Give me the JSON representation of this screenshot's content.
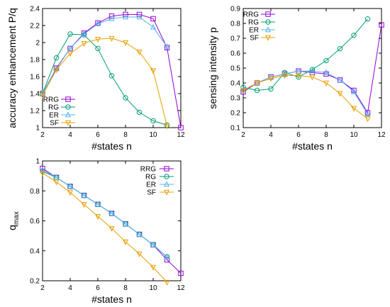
{
  "chart_data": [
    {
      "type": "line",
      "xlabel": "#states n",
      "ylabel": "accuracy enhancement P/q",
      "xlim": [
        2,
        12
      ],
      "ylim": [
        1,
        2.4
      ],
      "xticks": [
        "2",
        "4",
        "6",
        "8",
        "10",
        "12"
      ],
      "yticks": [
        "1",
        "1.2",
        "1.4",
        "1.6",
        "1.8",
        "2",
        "2.2",
        "2.4"
      ],
      "legend": "bottom-left",
      "series": [
        {
          "name": "RRG",
          "x": [
            2,
            3,
            4,
            5,
            6,
            7,
            8,
            9,
            10,
            11,
            12
          ],
          "values": [
            1.4,
            1.7,
            1.93,
            2.11,
            2.23,
            2.31,
            2.33,
            2.33,
            2.28,
            1.94,
            1.0
          ]
        },
        {
          "name": "RG",
          "x": [
            2,
            3,
            4,
            5,
            6,
            7,
            8,
            9,
            10,
            11
          ],
          "values": [
            1.4,
            1.82,
            2.1,
            2.09,
            1.93,
            1.61,
            1.35,
            1.18,
            1.08,
            1.03
          ]
        },
        {
          "name": "ER",
          "x": [
            2,
            3,
            4,
            5,
            6,
            7,
            8,
            9,
            10,
            11
          ],
          "values": [
            1.4,
            1.69,
            1.93,
            2.1,
            2.22,
            2.28,
            2.3,
            2.3,
            2.18,
            1.95
          ]
        },
        {
          "name": "SF",
          "x": [
            2,
            3,
            4,
            5,
            6,
            7,
            8,
            9,
            10,
            11
          ],
          "values": [
            1.38,
            1.68,
            1.87,
            1.99,
            2.04,
            2.05,
            2.0,
            1.89,
            1.67,
            1.02
          ]
        }
      ]
    },
    {
      "type": "line",
      "xlabel": "#states n",
      "ylabel": "sensing intensity p",
      "xlim": [
        2,
        12
      ],
      "ylim": [
        0.1,
        0.9
      ],
      "xticks": [
        "2",
        "4",
        "6",
        "8",
        "10",
        "12"
      ],
      "yticks": [
        "0.1",
        "0.2",
        "0.3",
        "0.4",
        "0.5",
        "0.6",
        "0.7",
        "0.8",
        "0.9"
      ],
      "legend": "top-left",
      "series": [
        {
          "name": "RRG",
          "x": [
            2,
            3,
            4,
            5,
            6,
            7,
            8,
            9,
            10,
            11,
            12
          ],
          "values": [
            0.34,
            0.4,
            0.44,
            0.46,
            0.48,
            0.47,
            0.46,
            0.42,
            0.35,
            0.2,
            0.79
          ]
        },
        {
          "name": "RG",
          "x": [
            2,
            3,
            4,
            5,
            6,
            7,
            8,
            9,
            10,
            11
          ],
          "values": [
            0.37,
            0.35,
            0.36,
            0.47,
            0.44,
            0.49,
            0.55,
            0.63,
            0.72,
            0.83
          ]
        },
        {
          "name": "ER",
          "x": [
            2,
            3,
            4,
            5,
            6,
            7,
            8,
            9,
            10,
            11
          ],
          "values": [
            0.35,
            0.4,
            0.44,
            0.46,
            0.48,
            0.48,
            0.47,
            0.42,
            0.34,
            0.19
          ]
        },
        {
          "name": "SF",
          "x": [
            2,
            3,
            4,
            5,
            6,
            7,
            8,
            9,
            10,
            11
          ],
          "values": [
            0.35,
            0.4,
            0.43,
            0.45,
            0.45,
            0.44,
            0.4,
            0.33,
            0.23,
            0.16
          ]
        }
      ]
    },
    {
      "type": "line",
      "xlabel": "#states n",
      "ylabel": "q",
      "ylabel_sub": "max",
      "xlim": [
        2,
        12
      ],
      "ylim": [
        0.2,
        1
      ],
      "xticks": [
        "2",
        "4",
        "6",
        "8",
        "10",
        "12"
      ],
      "yticks": [
        "0.2",
        "0.4",
        "0.6",
        "0.8",
        "1"
      ],
      "legend": "top-right",
      "series": [
        {
          "name": "RRG",
          "x": [
            2,
            3,
            4,
            5,
            6,
            7,
            8,
            9,
            10,
            11,
            12
          ],
          "values": [
            0.95,
            0.89,
            0.83,
            0.77,
            0.71,
            0.65,
            0.58,
            0.51,
            0.44,
            0.34,
            0.25
          ]
        },
        {
          "name": "RG",
          "x": [
            2,
            3,
            4,
            5,
            6,
            7,
            8,
            9,
            10,
            11
          ],
          "values": [
            0.93,
            0.89,
            0.83,
            0.77,
            0.71,
            0.65,
            0.58,
            0.51,
            0.44,
            0.36
          ]
        },
        {
          "name": "ER",
          "x": [
            2,
            3,
            4,
            5,
            6,
            7,
            8,
            9,
            10,
            11
          ],
          "values": [
            0.94,
            0.89,
            0.83,
            0.77,
            0.71,
            0.65,
            0.58,
            0.51,
            0.44,
            0.36
          ]
        },
        {
          "name": "SF",
          "x": [
            2,
            3,
            4,
            5,
            6,
            7,
            8,
            9,
            10,
            11
          ],
          "values": [
            0.92,
            0.86,
            0.79,
            0.71,
            0.63,
            0.55,
            0.46,
            0.38,
            0.29,
            0.19
          ]
        }
      ]
    }
  ],
  "styles": {
    "RRG": {
      "color": "#9400d3",
      "marker": "square"
    },
    "RG": {
      "color": "#009e73",
      "marker": "circle"
    },
    "ER": {
      "color": "#56b4e9",
      "marker": "triangle-up"
    },
    "SF": {
      "color": "#e69f00",
      "marker": "triangle-down"
    }
  }
}
